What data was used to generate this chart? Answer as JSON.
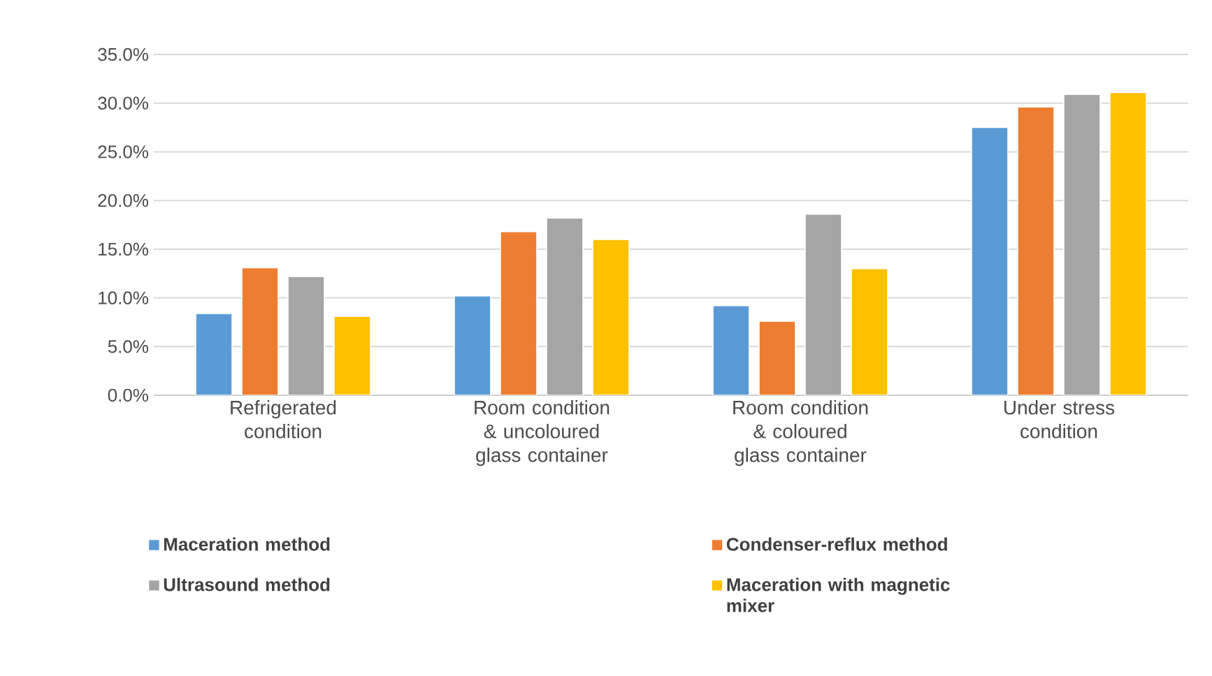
{
  "chart_data": {
    "type": "bar",
    "categories": [
      "Refrigerated condition",
      "Room condition & uncoloured glass container",
      "Room condition & coloured glass container",
      "Under stress condition"
    ],
    "series": [
      {
        "name": "Maceration method",
        "color": "#5b9bd5",
        "values": [
          8.4,
          10.2,
          9.2,
          27.5
        ]
      },
      {
        "name": "Condenser-reflux method",
        "color": "#ed7d31",
        "values": [
          13.1,
          16.8,
          7.6,
          29.6
        ]
      },
      {
        "name": "Ultrasound method",
        "color": "#a5a5a5",
        "values": [
          12.2,
          18.2,
          18.6,
          30.9
        ]
      },
      {
        "name": "Maceration with magnetic mixer",
        "color": "#ffc000",
        "values": [
          8.1,
          16.0,
          13.0,
          31.1
        ]
      }
    ],
    "ylim": [
      0,
      35
    ],
    "yticks": [
      {
        "value": 0,
        "label": "0.0%"
      },
      {
        "value": 5,
        "label": "5.0%"
      },
      {
        "value": 10,
        "label": "10.0%"
      },
      {
        "value": 15,
        "label": "15.0%"
      },
      {
        "value": 20,
        "label": "20.0%"
      },
      {
        "value": 25,
        "label": "25.0%"
      },
      {
        "value": 30,
        "label": "30.0%"
      },
      {
        "value": 35,
        "label": "35.0%"
      }
    ],
    "grid": "y",
    "legend": "bottom"
  }
}
